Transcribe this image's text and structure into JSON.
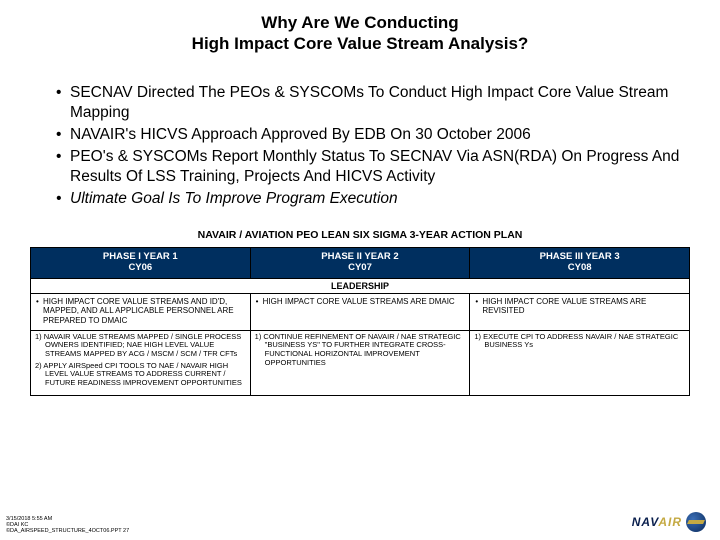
{
  "title_line1": "Why Are We Conducting",
  "title_line2": "High Impact Core Value Stream Analysis?",
  "bullets": [
    "SECNAV Directed The PEOs & SYSCOMs To Conduct High Impact Core Value Stream Mapping",
    "NAVAIR's HICVS Approach Approved By EDB On 30 October 2006",
    "PEO's & SYSCOMs Report Monthly Status To SECNAV Via ASN(RDA) On Progress And Results Of LSS Training, Projects And HICVS Activity",
    "Ultimate Goal Is To Improve Program Execution"
  ],
  "plan_title": "NAVAIR / AVIATION PEO LEAN SIX SIGMA 3-YEAR ACTION PLAN",
  "phases": [
    {
      "title": "PHASE I YEAR 1",
      "sub": "CY06"
    },
    {
      "title": "PHASE II YEAR 2",
      "sub": "CY07"
    },
    {
      "title": "PHASE III YEAR 3",
      "sub": "CY08"
    }
  ],
  "leadership_label": "LEADERSHIP",
  "row_items": [
    "HIGH IMPACT CORE VALUE STREAMS AND ID'D, MAPPED, AND ALL APPLICABLE PERSONNEL ARE PREPARED TO DMAIC",
    "HIGH IMPACT CORE VALUE STREAMS ARE DMAIC",
    "HIGH IMPACT CORE VALUE STREAMS ARE REVISITED"
  ],
  "row_subs": {
    "c1": [
      "1) NAVAIR VALUE STREAMS MAPPED / SINGLE PROCESS OWNERS IDENTIFIED; NAE HIGH LEVEL VALUE STREAMS MAPPED BY ACG / MSCM / SCM / TFR CFTs",
      "2) APPLY AIRSpeed CPI TOOLS TO NAE / NAVAIR HIGH LEVEL VALUE STREAMS TO ADDRESS CURRENT / FUTURE READINESS IMPROVEMENT OPPORTUNITIES"
    ],
    "c2": [
      "1) CONTINUE REFINEMENT OF NAVAIR / NAE STRATEGIC \"BUSINESS YS\" TO FURTHER INTEGRATE CROSS-FUNCTIONAL HORIZONTAL IMPROVEMENT OPPORTUNITIES"
    ],
    "c3": [
      "1) EXECUTE CPI TO ADDRESS NAVAIR / NAE STRATEGIC BUSINESS Ys"
    ]
  },
  "footer_lines": [
    "3/15/2018 5:55 AM",
    "©DAI KC",
    "©DA_AIRSPEED_STRUCTURE_4OCT06.PPT 27"
  ],
  "logo": {
    "nav": "NAV",
    "air": "AIR"
  },
  "colors": {
    "phase_bg": "#002f5f",
    "phase_text": "#ffffff",
    "border": "#000000"
  }
}
